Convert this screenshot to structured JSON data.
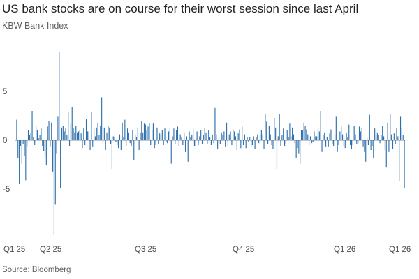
{
  "title": "US bank stocks are on course for their worst session since last April",
  "subtitle": "KBW Bank Index",
  "source": "Source: Bloomberg",
  "bar_color": "#2e6fad",
  "chart_data": {
    "type": "bar",
    "title": "US bank stocks are on course for their worst session since last April",
    "subtitle": "KBW Bank Index",
    "xlabel": "",
    "ylabel": "",
    "ylim": [
      -9.8,
      9.3
    ],
    "yticks": [
      5,
      0,
      -5
    ],
    "grid": false,
    "x_tick_labels": [
      "Q1 25",
      "Q2 25",
      "Q3 25",
      "Q4 25",
      "Q1 26",
      "Q1 26"
    ],
    "values": [
      2.1,
      -1.8,
      -4.5,
      -0.6,
      -2.4,
      -0.4,
      -1.6,
      -4.1,
      -0.7,
      1.0,
      0.5,
      0.8,
      3.0,
      0.3,
      -0.5,
      1.5,
      1.0,
      0.2,
      0.5,
      1.2,
      -0.6,
      -1.1,
      -1.7,
      -2.5,
      1.4,
      2.0,
      -0.7,
      1.8,
      -3.2,
      -9.7,
      -6.6,
      -1.4,
      2.4,
      9.0,
      -4.9,
      1.3,
      1.5,
      0.9,
      1.2,
      0.5,
      2.9,
      -0.6,
      1.7,
      3.4,
      1.2,
      0.8,
      1.5,
      0.8,
      0.9,
      1.0,
      0.7,
      -0.8,
      1.2,
      -0.5,
      2.2,
      0.9,
      0.9,
      -1.0,
      2.9,
      -0.7,
      1.3,
      0.4,
      1.3,
      1.8,
      0.5,
      1.5,
      4.4,
      -0.3,
      1.3,
      -1.0,
      0.8,
      1.5,
      1.3,
      -0.4,
      -3.0,
      0.4,
      0.3,
      -0.2,
      -0.5,
      -0.8,
      0.6,
      -1.0,
      1.8,
      0.3,
      2.1,
      -0.6,
      1.2,
      0.8,
      -0.3,
      -0.6,
      1.0,
      -2.0,
      0.6,
      0.3,
      1.3,
      -1.0,
      0.8,
      2.0,
      0.8,
      1.7,
      1.6,
      1.0,
      1.4,
      1.7,
      -0.5,
      1.0,
      1.7,
      -0.8,
      -0.5,
      1.3,
      -0.4,
      0.7,
      0.5,
      1.0,
      -0.5,
      1.2,
      -0.2,
      -0.3,
      0.9,
      1.2,
      -2.4,
      0.4,
      1.2,
      -0.4,
      1.0,
      1.4,
      -0.6,
      0.6,
      0.3,
      -0.5,
      0.8,
      -1.2,
      0.4,
      -2.2,
      0.9,
      0.3,
      0.5,
      1.2,
      -0.6,
      -0.6,
      0.9,
      -0.5,
      0.4,
      1.0,
      -0.4,
      0.5,
      1.2,
      0.8,
      -0.4,
      1.0,
      0.3,
      -0.5,
      0.5,
      -0.3,
      3.3,
      0.6,
      -0.9,
      0.3,
      -0.4,
      0.8,
      0.5,
      0.9,
      -0.7,
      1.8,
      -0.6,
      0.6,
      0.9,
      -0.5,
      1.1,
      0.9,
      0.4,
      -1.0,
      0.7,
      1.1,
      -0.8,
      1.4,
      -0.5,
      0.6,
      -0.8,
      0.3,
      -0.2,
      0.3,
      -0.6,
      -0.5,
      0.4,
      -0.9,
      0.3,
      0.6,
      -0.3,
      0.5,
      1.0,
      0.6,
      -0.9,
      2.7,
      1.9,
      -0.4,
      1.5,
      0.6,
      -0.5,
      -0.9,
      2.3,
      1.3,
      -3.0,
      0.4,
      2.7,
      -0.6,
      0.5,
      1.2,
      -0.6,
      -0.4,
      1.0,
      0.3,
      1.7,
      0.4,
      1.3,
      0.6,
      -0.3,
      -1.8,
      -0.8,
      -1.4,
      -2.4,
      1.0,
      1.0,
      1.8,
      1.5,
      1.1,
      0.6,
      -0.5,
      0.4,
      -0.3,
      -0.2,
      0.9,
      0.4,
      0.4,
      1.3,
      0.9,
      3.0,
      -1.2,
      0.5,
      0.8,
      -0.7,
      0.3,
      -0.7,
      0.7,
      1.1,
      -0.4,
      -0.6,
      0.5,
      2.4,
      -1.2,
      -0.5,
      0.9,
      1.4,
      0.6,
      -0.6,
      -0.8,
      0.8,
      0.3,
      1.6,
      -0.5,
      -0.9,
      -0.5,
      1.5,
      0.6,
      -0.4,
      -0.3,
      1.4,
      0.9,
      1.3,
      -0.7,
      -1.2,
      -2.2,
      0.3,
      -0.5,
      2.6,
      -1.0,
      -0.6,
      -1.8,
      1.2,
      0.5,
      0.8,
      0.5,
      -0.3,
      0.5,
      1.5,
      0.4,
      -1.0,
      -2.8,
      1.8,
      -1.2,
      2.7,
      0.6,
      -0.9,
      0.7,
      -0.4,
      1.2,
      0.4,
      -4.2,
      2.4,
      1.3,
      0.5,
      -4.9
    ]
  }
}
